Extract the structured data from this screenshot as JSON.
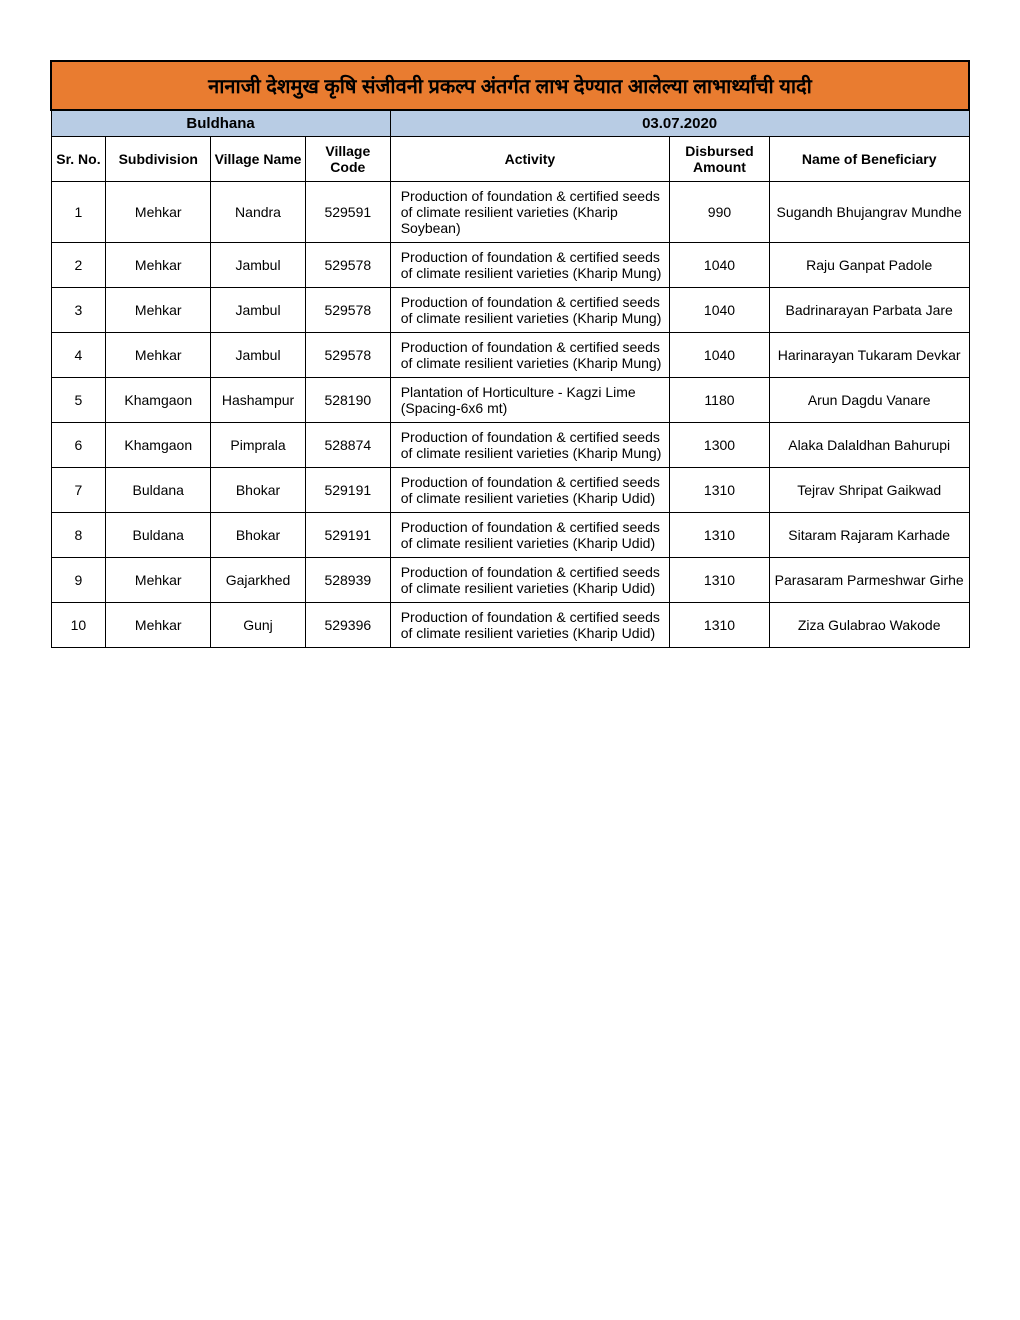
{
  "title": "नानाजी देशमुख कृषि संजीवनी प्रकल्प अंतर्गत लाभ देण्यात आलेल्या लाभार्थ्यांची यादी",
  "district": "Buldhana",
  "date": "03.07.2020",
  "headers": {
    "sr": "Sr. No.",
    "subdivision": "Subdivision",
    "vname": "Village Name",
    "vcode": "Village Code",
    "activity": "Activity",
    "amount": "Disbursed Amount",
    "beneficiary": "Name of Beneficiary"
  },
  "rows": [
    {
      "sr": "1",
      "sub": "Mehkar",
      "vname": "Nandra",
      "vcode": "529591",
      "act": "Production of foundation & certified seeds of climate resilient varieties (Kharip Soybean)",
      "amt": "990",
      "ben": "Sugandh Bhujangrav Mundhe"
    },
    {
      "sr": "2",
      "sub": "Mehkar",
      "vname": "Jambul",
      "vcode": "529578",
      "act": "Production of foundation & certified seeds of climate resilient varieties (Kharip Mung)",
      "amt": "1040",
      "ben": "Raju Ganpat Padole"
    },
    {
      "sr": "3",
      "sub": "Mehkar",
      "vname": "Jambul",
      "vcode": "529578",
      "act": "Production of foundation & certified seeds of climate resilient varieties (Kharip Mung)",
      "amt": "1040",
      "ben": "Badrinarayan Parbata Jare"
    },
    {
      "sr": "4",
      "sub": "Mehkar",
      "vname": "Jambul",
      "vcode": "529578",
      "act": "Production of foundation & certified seeds of climate resilient varieties (Kharip Mung)",
      "amt": "1040",
      "ben": "Harinarayan Tukaram Devkar"
    },
    {
      "sr": "5",
      "sub": "Khamgaon",
      "vname": "Hashampur",
      "vcode": "528190",
      "act": "Plantation of Horticulture - Kagzi Lime (Spacing-6x6 mt)",
      "amt": "1180",
      "ben": "Arun Dagdu Vanare"
    },
    {
      "sr": "6",
      "sub": "Khamgaon",
      "vname": "Pimprala",
      "vcode": "528874",
      "act": "Production of foundation & certified seeds of climate resilient varieties (Kharip Mung)",
      "amt": "1300",
      "ben": "Alaka Dalaldhan Bahurupi"
    },
    {
      "sr": "7",
      "sub": "Buldana",
      "vname": "Bhokar",
      "vcode": "529191",
      "act": "Production of foundation & certified seeds of climate resilient varieties (Kharip Udid)",
      "amt": "1310",
      "ben": "Tejrav Shripat Gaikwad"
    },
    {
      "sr": "8",
      "sub": "Buldana",
      "vname": "Bhokar",
      "vcode": "529191",
      "act": "Production of foundation & certified seeds of climate resilient varieties (Kharip Udid)",
      "amt": "1310",
      "ben": "Sitaram Rajaram Karhade"
    },
    {
      "sr": "9",
      "sub": "Mehkar",
      "vname": "Gajarkhed",
      "vcode": "528939",
      "act": "Production of foundation & certified seeds of climate resilient varieties (Kharip Udid)",
      "amt": "1310",
      "ben": "Parasaram Parmeshwar Girhe"
    },
    {
      "sr": "10",
      "sub": "Mehkar",
      "vname": "Gunj",
      "vcode": "529396",
      "act": "Production of foundation & certified seeds of climate resilient varieties (Kharip Udid)",
      "amt": "1310",
      "ben": "Ziza Gulabrao Wakode"
    }
  ],
  "style": {
    "title_bg": "#e97c30",
    "sub_bg": "#b8cce4",
    "border": "#000000",
    "font": "Arial",
    "title_fontsize": 20,
    "header_fontsize": 14,
    "cell_fontsize": 14
  }
}
